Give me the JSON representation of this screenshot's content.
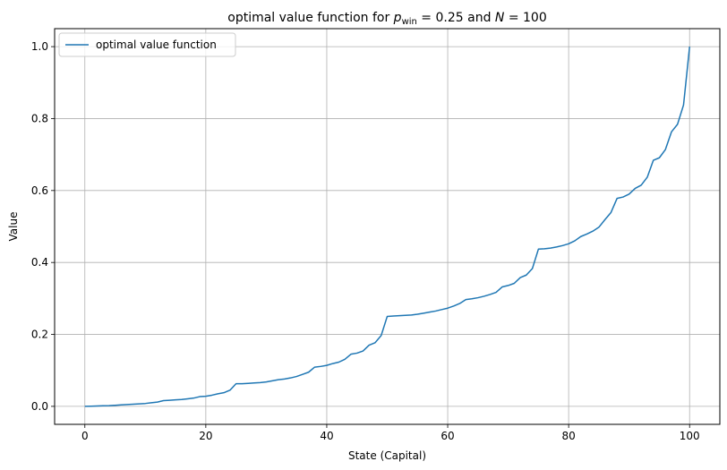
{
  "chart_data": {
    "type": "line",
    "title_prefix": "optimal value function for ",
    "title_p": "p",
    "title_p_sub": "win",
    "title_middle": " = 0.25 and ",
    "title_n": "N",
    "title_suffix": " = 100",
    "xlabel": "State (Capital)",
    "ylabel": "Value",
    "xlim": [
      -5,
      105
    ],
    "ylim": [
      -0.05,
      1.05
    ],
    "xticks": [
      0,
      20,
      40,
      60,
      80,
      100
    ],
    "yticks": [
      0.0,
      0.2,
      0.4,
      0.6,
      0.8,
      1.0
    ],
    "xtick_labels": [
      "0",
      "20",
      "40",
      "60",
      "80",
      "100"
    ],
    "ytick_labels": [
      "0.0",
      "0.2",
      "0.4",
      "0.6",
      "0.8",
      "1.0"
    ],
    "grid": true,
    "legend_position": "upper-left",
    "series": [
      {
        "name": "optimal value function",
        "color": "#1f77b4",
        "x": [
          0,
          1,
          2,
          3,
          4,
          5,
          6,
          7,
          8,
          9,
          10,
          11,
          12,
          13,
          14,
          15,
          16,
          17,
          18,
          19,
          20,
          21,
          22,
          23,
          24,
          25,
          26,
          27,
          28,
          29,
          30,
          31,
          32,
          33,
          34,
          35,
          36,
          37,
          38,
          39,
          40,
          41,
          42,
          43,
          44,
          45,
          46,
          47,
          48,
          49,
          50,
          51,
          52,
          53,
          54,
          55,
          56,
          57,
          58,
          59,
          60,
          61,
          62,
          63,
          64,
          65,
          66,
          67,
          68,
          69,
          70,
          71,
          72,
          73,
          74,
          75,
          76,
          77,
          78,
          79,
          80,
          81,
          82,
          83,
          84,
          85,
          86,
          87,
          88,
          89,
          90,
          91,
          92,
          93,
          94,
          95,
          96,
          97,
          98,
          99,
          100
        ],
        "values": [
          0.0,
          0.0005,
          0.001,
          0.0015,
          0.002,
          0.003,
          0.004,
          0.005,
          0.006,
          0.007,
          0.008,
          0.01,
          0.012,
          0.016,
          0.017,
          0.018,
          0.019,
          0.021,
          0.023,
          0.027,
          0.028,
          0.031,
          0.035,
          0.038,
          0.045,
          0.063,
          0.063,
          0.064,
          0.065,
          0.066,
          0.068,
          0.071,
          0.074,
          0.076,
          0.079,
          0.083,
          0.089,
          0.095,
          0.109,
          0.111,
          0.114,
          0.119,
          0.123,
          0.131,
          0.145,
          0.148,
          0.154,
          0.17,
          0.177,
          0.197,
          0.25,
          0.251,
          0.252,
          0.253,
          0.254,
          0.256,
          0.259,
          0.262,
          0.265,
          0.269,
          0.273,
          0.279,
          0.286,
          0.297,
          0.299,
          0.302,
          0.306,
          0.311,
          0.317,
          0.332,
          0.336,
          0.342,
          0.358,
          0.365,
          0.383,
          0.437,
          0.438,
          0.44,
          0.443,
          0.447,
          0.452,
          0.46,
          0.472,
          0.479,
          0.487,
          0.498,
          0.519,
          0.539,
          0.578,
          0.582,
          0.59,
          0.606,
          0.615,
          0.637,
          0.684,
          0.691,
          0.714,
          0.763,
          0.784,
          0.838,
          1.0
        ]
      }
    ]
  }
}
